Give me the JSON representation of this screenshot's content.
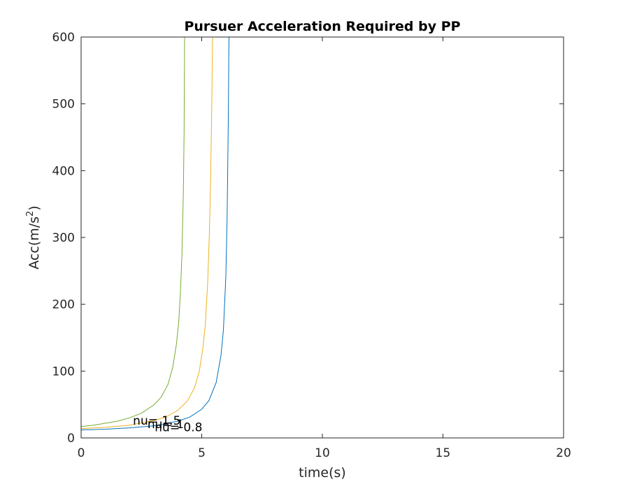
{
  "chart_data": {
    "type": "line",
    "title": "Pursuer Acceleration Required by PP",
    "xlabel": "time(s)",
    "ylabel_base": "Acc(m/s",
    "ylabel_sup": "2",
    "ylabel_close": ")",
    "xlim": [
      0,
      20
    ],
    "ylim": [
      0,
      600
    ],
    "xticks": [
      0,
      5,
      10,
      15,
      20
    ],
    "yticks": [
      0,
      100,
      200,
      300,
      400,
      500,
      600
    ],
    "xtick_labels": [
      "0",
      "5",
      "10",
      "15",
      "20"
    ],
    "ytick_labels": [
      "0",
      "100",
      "200",
      "300",
      "400",
      "500",
      "600"
    ],
    "grid": false,
    "box": true,
    "series": [
      {
        "color": "#0072BD",
        "x": [
          0,
          1,
          2,
          3,
          4,
          4.5,
          5,
          5.3,
          5.6,
          5.8,
          5.9,
          6.0,
          6.05,
          6.1,
          6.12,
          6.13
        ],
        "y": [
          12,
          13,
          15,
          18,
          25,
          31,
          43,
          56,
          83,
          124,
          162,
          242,
          324,
          470,
          560,
          600
        ]
      },
      {
        "color": "#EDB120",
        "x": [
          0,
          1,
          2,
          3,
          3.5,
          4,
          4.4,
          4.7,
          4.9,
          5.05,
          5.15,
          5.25,
          5.32,
          5.37,
          5.42,
          5.45
        ],
        "y": [
          14,
          16,
          19,
          26,
          31,
          41,
          55,
          75,
          100,
          135,
          170,
          235,
          310,
          390,
          505,
          600
        ]
      },
      {
        "color": "#77AC30",
        "x": [
          0,
          0.5,
          1,
          1.5,
          2,
          2.5,
          3,
          3.3,
          3.6,
          3.8,
          3.95,
          4.05,
          4.12,
          4.18,
          4.24,
          4.27,
          4.29
        ],
        "y": [
          17,
          19,
          22,
          25,
          30,
          37,
          49,
          60,
          80,
          106,
          140,
          175,
          220,
          275,
          370,
          460,
          600
        ]
      }
    ],
    "annotations": [
      {
        "text": "nu= 1.5",
        "x": 2.15,
        "y": 26
      },
      {
        "text": "nu= 1",
        "x": 2.75,
        "y": 21
      },
      {
        "text": "nu= 0.8",
        "x": 3.05,
        "y": 16
      }
    ]
  }
}
